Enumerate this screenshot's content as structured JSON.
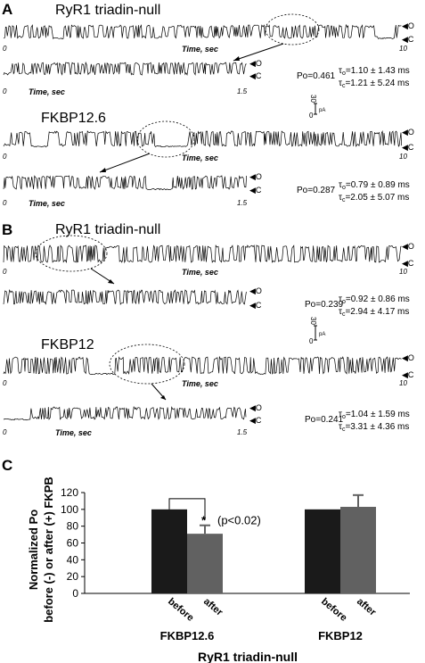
{
  "panels": {
    "A": {
      "label": "A",
      "traces": [
        {
          "title": "RyR1  triadin-null",
          "x_end": "10",
          "po": "Po=0.461",
          "tau_o": "=1.10 ± 1.43 ms",
          "tau_c": "=1.21 ± 5.24 ms"
        },
        {
          "title": "FKBP12.6",
          "x_end": "10",
          "po": "Po=0.287",
          "tau_o": "=0.79 ± 0.89 ms",
          "tau_c": "=2.05 ± 5.07 ms"
        }
      ]
    },
    "B": {
      "label": "B",
      "traces": [
        {
          "title": "RyR1  triadin-null",
          "x_end": "10",
          "po": "Po=0.239",
          "tau_o": "=0.92 ± 0.86 ms",
          "tau_c": "=2.94 ± 4.17 ms"
        },
        {
          "title": "FKBP12",
          "x_end": "10",
          "po": "Po=0.241",
          "tau_o": "=1.04 ± 1.59 ms",
          "tau_c": "=3.31 ± 4.36 ms"
        }
      ]
    },
    "C": {
      "label": "C"
    }
  },
  "common": {
    "x_start": "0",
    "zoom_end": "1.5",
    "time_label": "Time, sec",
    "open_marker": "O",
    "closed_marker": "C",
    "tau_symbol": "τ",
    "tau_o_sub": "o",
    "tau_c_sub": "c",
    "scale_value": "30",
    "scale_zero": "0",
    "scale_unit": "pA"
  },
  "chart_data": {
    "type": "bar",
    "ylabel_line1": "Normalized Po",
    "ylabel_line2": "before (-) or after (+) FKPB",
    "xlabel": "RyR1  triadin-null",
    "ylim": [
      0,
      120
    ],
    "yticks": [
      "0",
      "20",
      "40",
      "60",
      "80",
      "100",
      "120"
    ],
    "groups": [
      {
        "name": "FKBP12.6",
        "bars": [
          {
            "label": "before",
            "value": 100,
            "error": 0,
            "color": "#1a1a1a"
          },
          {
            "label": "after",
            "value": 71,
            "error": 10,
            "color": "#616161"
          }
        ],
        "significance": "*",
        "p_text": "(p<0.02)"
      },
      {
        "name": "FKBP12",
        "bars": [
          {
            "label": "before",
            "value": 100,
            "error": 0,
            "color": "#1a1a1a"
          },
          {
            "label": "after",
            "value": 103,
            "error": 14,
            "color": "#616161"
          }
        ]
      }
    ]
  }
}
